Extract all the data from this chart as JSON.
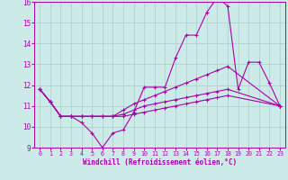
{
  "xlabel": "Windchill (Refroidissement éolien,°C)",
  "xlim": [
    -0.5,
    23.5
  ],
  "ylim": [
    9,
    16
  ],
  "yticks": [
    9,
    10,
    11,
    12,
    13,
    14,
    15,
    16
  ],
  "xticks": [
    0,
    1,
    2,
    3,
    4,
    5,
    6,
    7,
    8,
    9,
    10,
    11,
    12,
    13,
    14,
    15,
    16,
    17,
    18,
    19,
    20,
    21,
    22,
    23
  ],
  "bg_color": "#cceae7",
  "grid_color": "#aacccc",
  "line_color": "#aa00aa",
  "line1_x": [
    0,
    1,
    2,
    3,
    4,
    5,
    6,
    7,
    8,
    9,
    10,
    11,
    12,
    13,
    14,
    15,
    16,
    17,
    18,
    19,
    20,
    21,
    22,
    23
  ],
  "line1_y": [
    11.8,
    11.2,
    10.5,
    10.5,
    10.2,
    9.7,
    9.0,
    9.7,
    9.85,
    10.7,
    11.9,
    11.9,
    11.9,
    13.3,
    14.4,
    14.4,
    15.5,
    16.2,
    15.8,
    11.8,
    13.1,
    13.1,
    12.1,
    11.0
  ],
  "line2_x": [
    0,
    1,
    2,
    3,
    4,
    5,
    6,
    7,
    8,
    9,
    10,
    11,
    12,
    13,
    14,
    15,
    16,
    17,
    18,
    23
  ],
  "line2_y": [
    11.8,
    11.2,
    10.5,
    10.5,
    10.5,
    10.5,
    10.5,
    10.5,
    10.8,
    11.1,
    11.3,
    11.5,
    11.7,
    11.9,
    12.1,
    12.3,
    12.5,
    12.7,
    12.9,
    11.0
  ],
  "line3_x": [
    0,
    1,
    2,
    3,
    4,
    5,
    6,
    7,
    8,
    9,
    10,
    11,
    12,
    13,
    14,
    15,
    16,
    17,
    18,
    23
  ],
  "line3_y": [
    11.8,
    11.2,
    10.5,
    10.5,
    10.5,
    10.5,
    10.5,
    10.5,
    10.6,
    10.8,
    11.0,
    11.1,
    11.2,
    11.3,
    11.4,
    11.5,
    11.6,
    11.7,
    11.8,
    11.0
  ],
  "line4_x": [
    0,
    1,
    2,
    3,
    4,
    5,
    6,
    7,
    8,
    9,
    10,
    11,
    12,
    13,
    14,
    15,
    16,
    17,
    18,
    23
  ],
  "line4_y": [
    11.8,
    11.2,
    10.5,
    10.5,
    10.5,
    10.5,
    10.5,
    10.5,
    10.5,
    10.6,
    10.7,
    10.8,
    10.9,
    11.0,
    11.1,
    11.2,
    11.3,
    11.4,
    11.5,
    11.0
  ]
}
